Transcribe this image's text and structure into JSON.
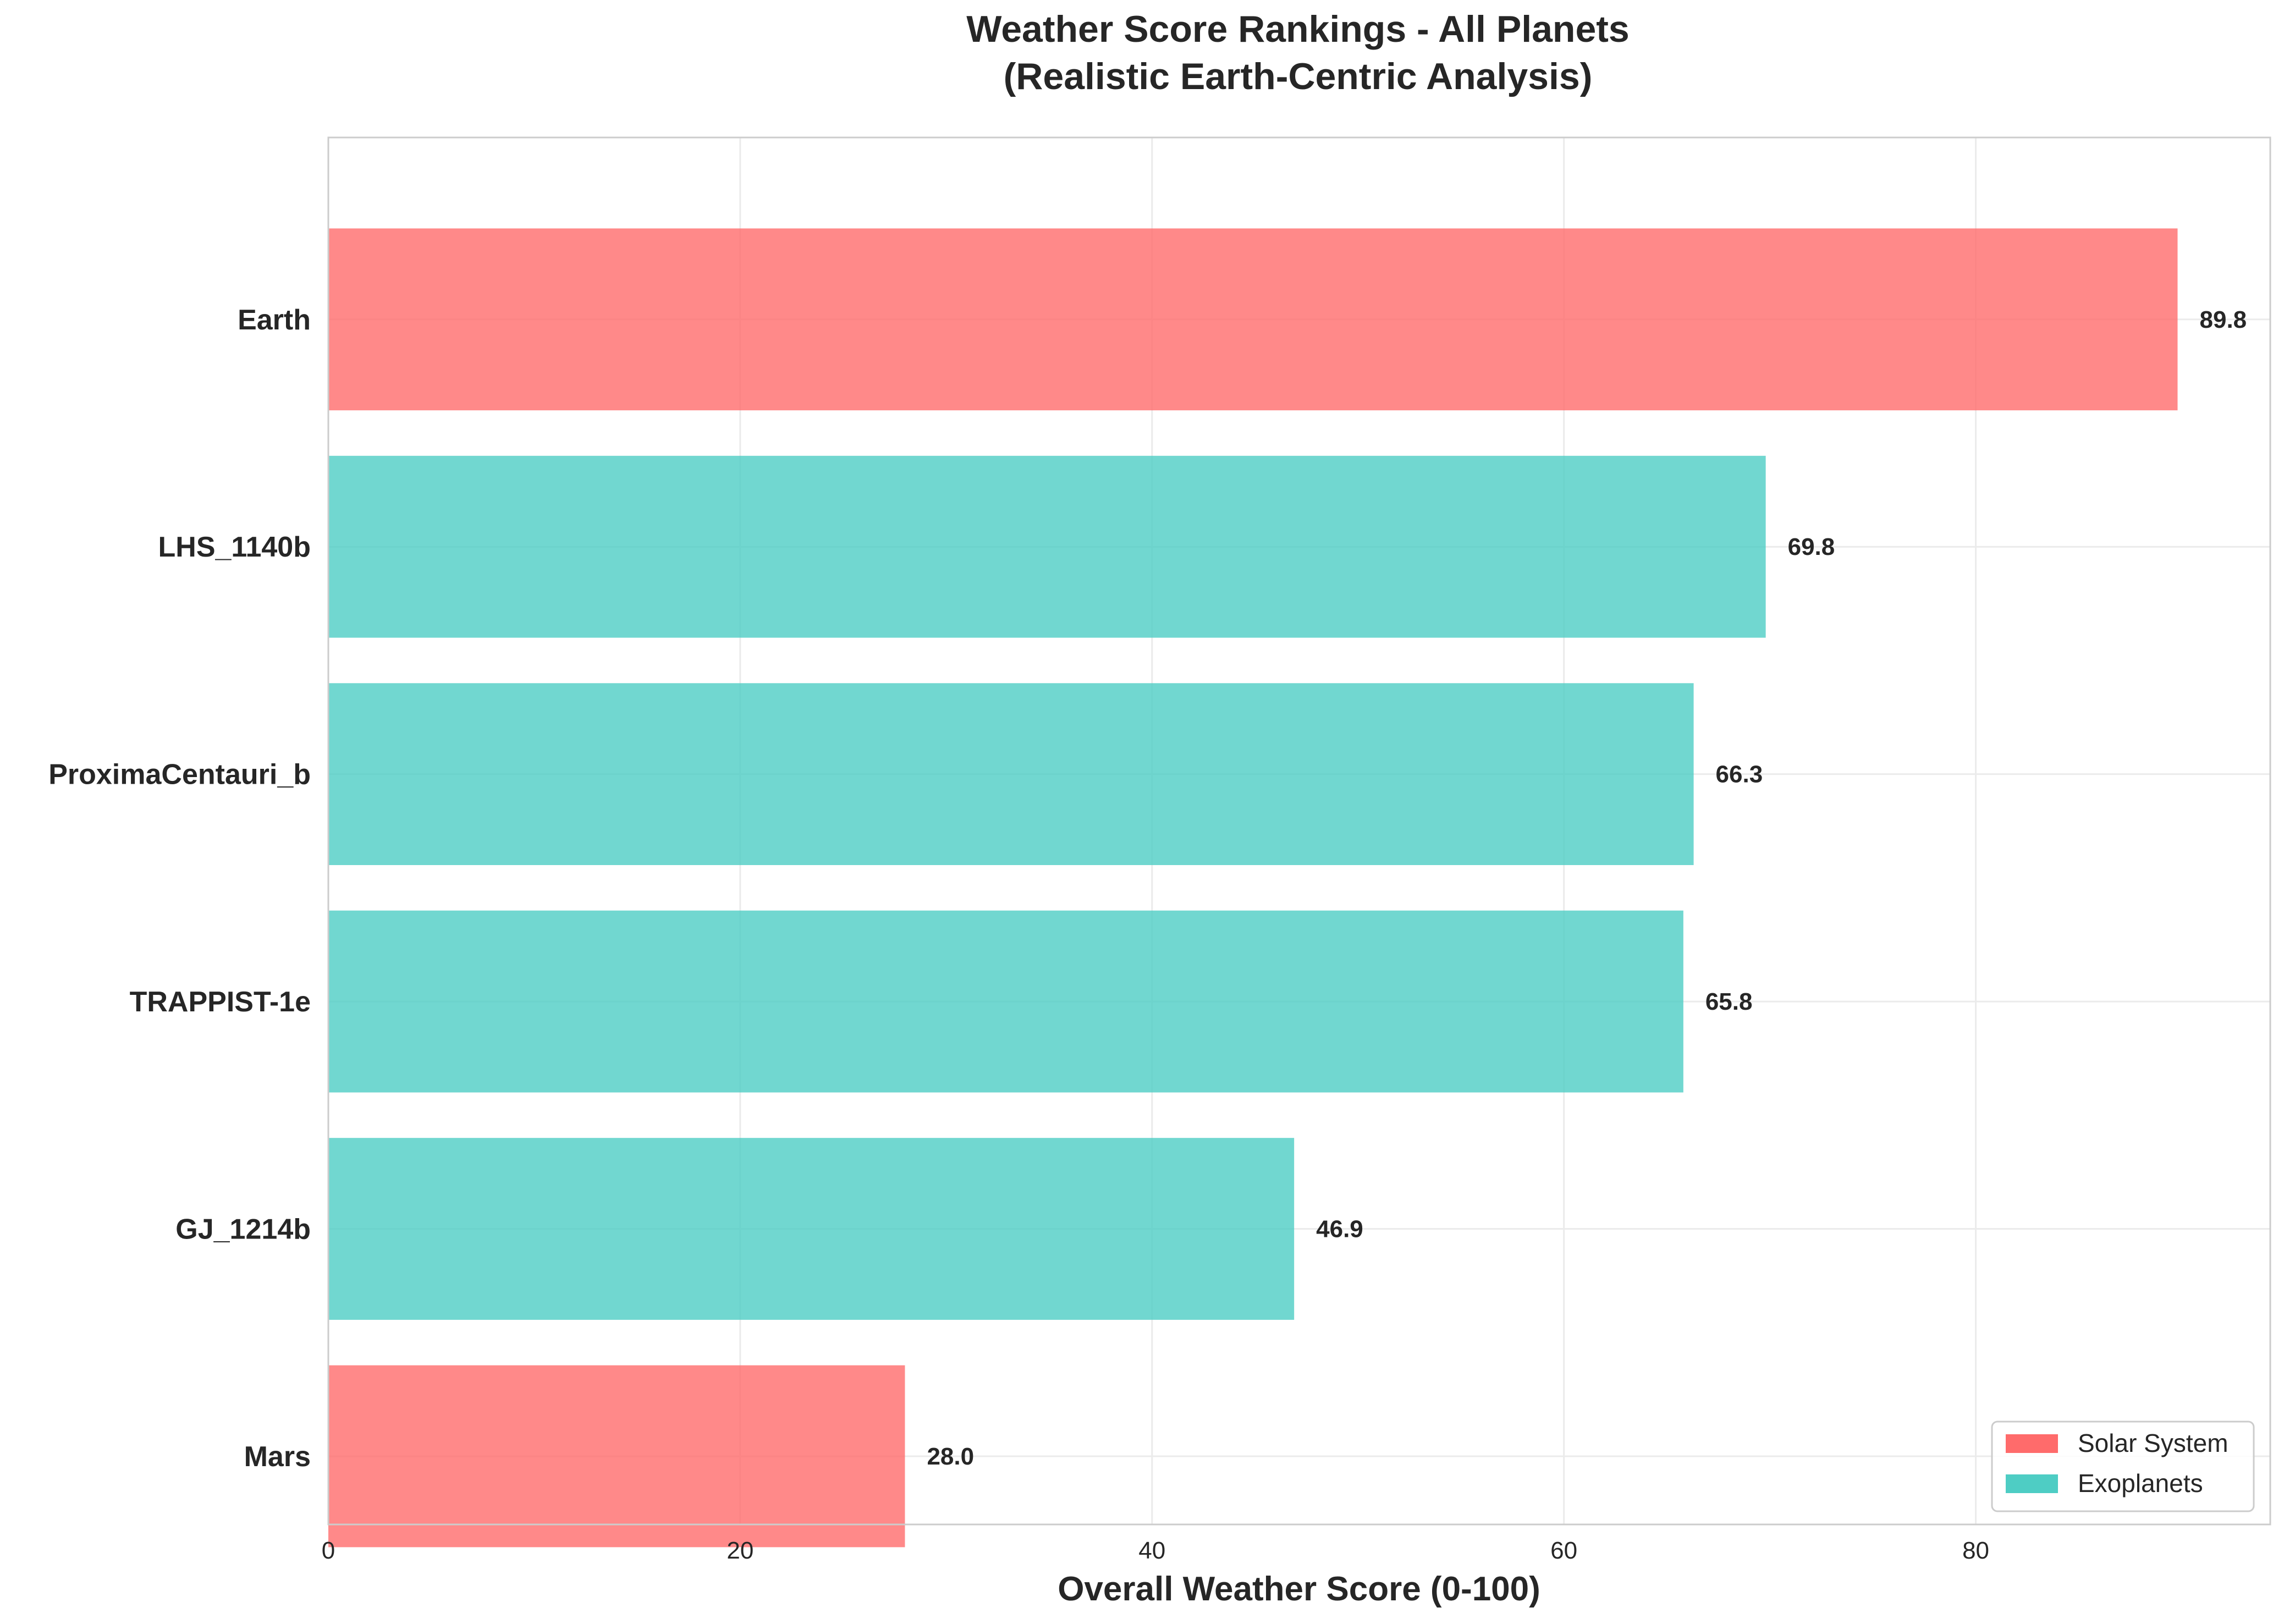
{
  "chart_data": {
    "type": "bar",
    "orientation": "horizontal",
    "title": "Weather Score Rankings - All Planets",
    "subtitle": "(Realistic Earth-Centric Analysis)",
    "xlabel": "Overall Weather Score (0-100)",
    "ylabel": "",
    "xlim": [
      0,
      94.3
    ],
    "xticks": [
      0,
      20,
      40,
      60,
      80
    ],
    "grid": true,
    "legend_position": "bottom-right",
    "categories": [
      "Earth",
      "LHS_1140b",
      "ProximaCentauri_b",
      "TRAPPIST-1e",
      "GJ_1214b",
      "Mars"
    ],
    "values": [
      89.8,
      69.8,
      66.3,
      65.8,
      46.9,
      28.0
    ],
    "value_labels": [
      "89.8",
      "69.8",
      "66.3",
      "65.8",
      "46.9",
      "28.0"
    ],
    "groups": [
      "Solar System",
      "Exoplanets",
      "Exoplanets",
      "Exoplanets",
      "Exoplanets",
      "Solar System"
    ],
    "legend": [
      {
        "name": "Solar System",
        "color": "#ff6b6b"
      },
      {
        "name": "Exoplanets",
        "color": "#4ecdc4"
      }
    ]
  }
}
